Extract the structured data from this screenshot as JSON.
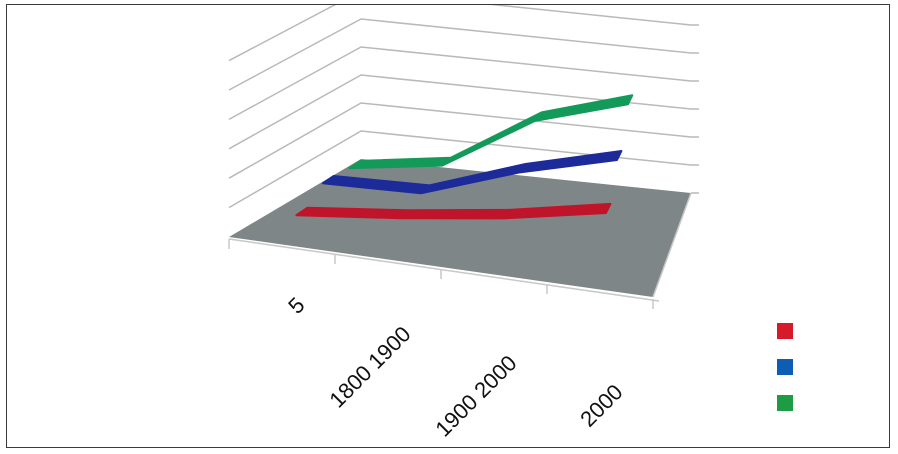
{
  "chart_data": {
    "type": "line",
    "style": "3d-ribbon",
    "categories": [
      "5",
      "1800 1900",
      "1900 2000",
      "2000"
    ],
    "title": "",
    "xlabel": "",
    "ylabel": "",
    "ylim": [
      0,
      6
    ],
    "grid": true,
    "legend_position": "right",
    "series": [
      {
        "values": [
          0.7,
          1.1,
          1.6,
          2.3
        ],
        "color": "#c0142a"
      },
      {
        "values": [
          1.2,
          1.3,
          2.5,
          3.4
        ],
        "color": "#1c2a9a"
      },
      {
        "values": [
          1.1,
          1.6,
          3.6,
          4.6
        ],
        "color": "#139a5a"
      }
    ]
  },
  "legend": [
    {
      "color": "#d71a2a"
    },
    {
      "color": "#0d5db3"
    },
    {
      "color": "#1e9b45"
    }
  ],
  "colors": {
    "floor": "#7f8687",
    "gridline": "#b9b9b9",
    "frame": "#3a3a3a"
  }
}
